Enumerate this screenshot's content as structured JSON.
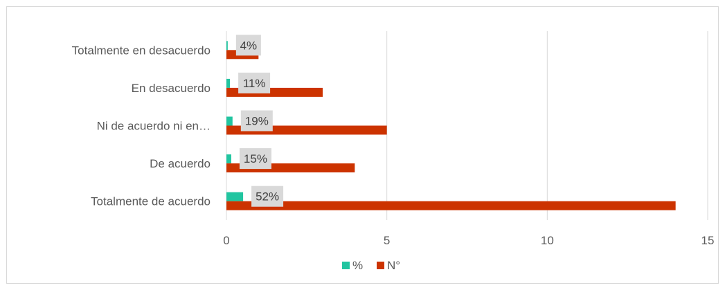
{
  "chart_data": {
    "type": "bar",
    "orientation": "horizontal",
    "categories": [
      "Totalmente de acuerdo",
      "De acuerdo",
      "Ni de acuerdo ni en…",
      "En desacuerdo",
      "Totalmente en desacuerdo"
    ],
    "series": [
      {
        "name": "%",
        "values": [
          0.52,
          0.15,
          0.19,
          0.11,
          0.04
        ],
        "color": "#21c5a0"
      },
      {
        "name": "N°",
        "values": [
          14,
          4,
          5,
          3,
          1
        ],
        "color": "#cc3300"
      }
    ],
    "data_labels": [
      "52%",
      "15%",
      "19%",
      "11%",
      "4%"
    ],
    "x_ticks": [
      "0",
      "5",
      "10",
      "15"
    ],
    "xlim": [
      0,
      15
    ],
    "grid": true,
    "legend_position": "bottom"
  }
}
